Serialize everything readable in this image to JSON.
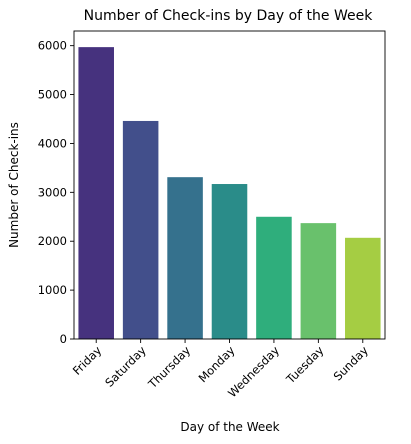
{
  "chart_data": {
    "type": "bar",
    "title": "Number of Check-ins by Day of the Week",
    "xlabel": "Day of the Week",
    "ylabel": "Number of Check-ins",
    "categories": [
      "Friday",
      "Saturday",
      "Thursday",
      "Monday",
      "Wednesday",
      "Tuesday",
      "Sunday"
    ],
    "values": [
      5970,
      4460,
      3310,
      3170,
      2500,
      2370,
      2070
    ],
    "colors": [
      "#46327e",
      "#424f8b",
      "#35718d",
      "#2a8c89",
      "#2fae7c",
      "#69c16c",
      "#a5cd43"
    ],
    "ylim": [
      0,
      6300
    ],
    "yticks": [
      0,
      1000,
      2000,
      3000,
      4000,
      5000,
      6000
    ],
    "grid": false,
    "legend": "none"
  }
}
